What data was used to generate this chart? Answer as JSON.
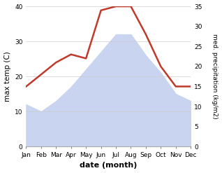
{
  "months": [
    "Jan",
    "Feb",
    "Mar",
    "Apr",
    "May",
    "Jun",
    "Jul",
    "Aug",
    "Sep",
    "Oct",
    "Nov",
    "Dec"
  ],
  "max_temp": [
    12,
    10,
    13,
    17,
    22,
    27,
    32,
    32,
    26,
    21,
    15,
    13
  ],
  "precipitation": [
    15,
    18,
    21,
    23,
    22,
    34,
    35,
    35,
    28,
    20,
    15,
    15
  ],
  "temp_color": "#c0392b",
  "precip_fill_color": "#c8d4f0",
  "temp_ylim": [
    0,
    40
  ],
  "precip_ylim": [
    0,
    35
  ],
  "temp_yticks": [
    0,
    10,
    20,
    30,
    40
  ],
  "precip_yticks": [
    0,
    5,
    10,
    15,
    20,
    25,
    30,
    35
  ],
  "xlabel": "date (month)",
  "ylabel_left": "max temp (C)",
  "ylabel_right": "med. precipitation (kg/m2)",
  "bg_color": "#ffffff",
  "line_width": 1.8
}
